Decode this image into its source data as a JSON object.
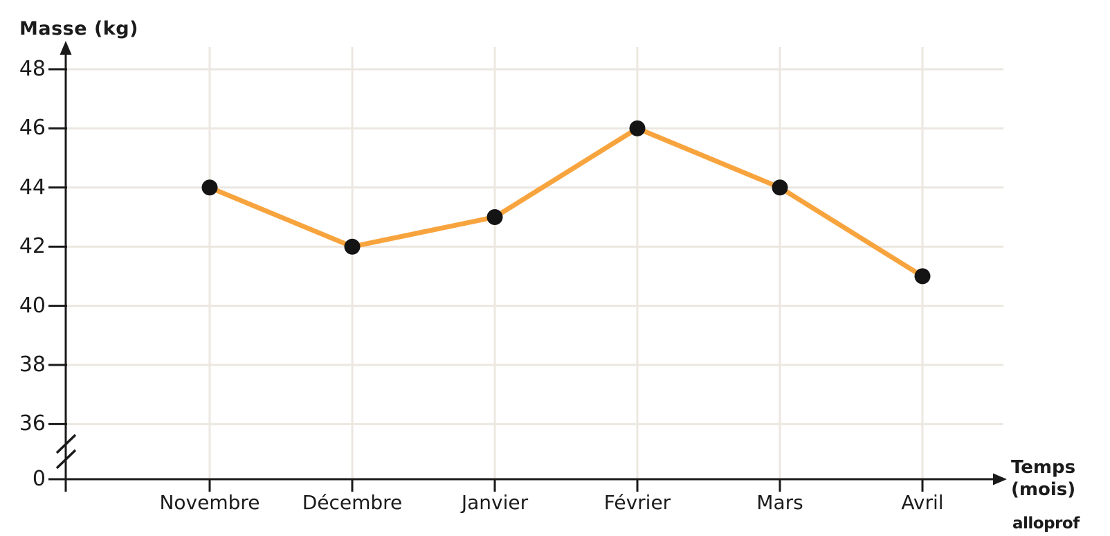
{
  "chart": {
    "y_axis_title": "Masse (kg)",
    "x_axis_title_line1": "Temps",
    "x_axis_title_line2": "(mois)",
    "origin_label": "0",
    "watermark": "alloprof",
    "colors": {
      "line": "#F8A43E",
      "point": "#141414",
      "grid": "#ECE7E0",
      "axis": "#1A1A1A",
      "text": "#1B1B1B"
    }
  },
  "chart_data": {
    "type": "line",
    "title": "",
    "xlabel": "Temps (mois)",
    "ylabel": "Masse (kg)",
    "categories": [
      "Novembre",
      "Décembre",
      "Janvier",
      "Février",
      "Mars",
      "Avril"
    ],
    "values": [
      44,
      42,
      43,
      46,
      44,
      41
    ],
    "y_ticks": [
      48,
      46,
      44,
      42,
      40,
      38,
      36
    ],
    "ylim": [
      36,
      48
    ],
    "y_axis_break_to_zero": true,
    "grid": true,
    "legend": "none",
    "series_name": "Masse"
  }
}
